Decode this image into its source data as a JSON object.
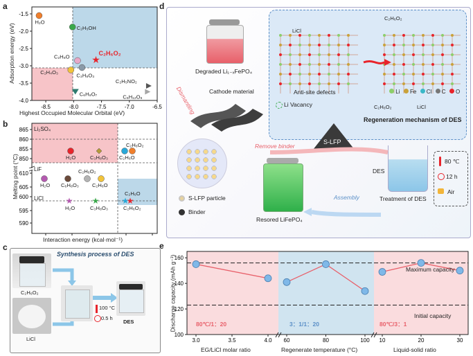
{
  "panel_a": {
    "letter": "a",
    "xlabel": "Highest Occupied Molecular Orbital (eV)",
    "ylabel": "Adsorption energy (eV)",
    "xticks": [
      "-8.5",
      "-8.0",
      "-7.5",
      "-7.0",
      "-6.5"
    ],
    "yticks": [
      "-1.5",
      "-2.0",
      "-2.5",
      "-3.0",
      "-3.5",
      "-4.0"
    ],
    "points": [
      {
        "label": "H₂O",
        "color": "#f07f2c"
      },
      {
        "label": "C₂H₅OH",
        "color": "#3aa84a"
      },
      {
        "label": "C₂H₆O₂",
        "color": "#e8242b"
      },
      {
        "label": "C₂H₆O",
        "color": "#e8a8c8"
      },
      {
        "label": "C₃H₈O₃",
        "color": "#8a9aa8"
      },
      {
        "label": "C₂H₄O₃",
        "color": "#f2c33a"
      },
      {
        "label": "C₆H₈O₇",
        "color": "#2e7a6e"
      },
      {
        "label": "C₂H₅NO₂",
        "color": "#555555"
      },
      {
        "label": "C₆H₁₂O₆",
        "color": "#a6a6a6"
      }
    ]
  },
  "panel_b": {
    "letter": "b",
    "xlabel": "Interaction energy (kcal·mol⁻¹)",
    "ylabel": "Melting point (°C)",
    "xticks": [
      "-15",
      "-16",
      "-17",
      "-18",
      "-19"
    ],
    "yticks": [
      "865",
      "860",
      "855",
      "850",
      "610",
      "605",
      "600",
      "595",
      "590"
    ],
    "salts": [
      "Li₂SO₄",
      "LiF",
      "LiCl"
    ],
    "labels": [
      "H₂O",
      "C₃H₈O₃",
      "C₂H₆O₂",
      "C₂H₆O",
      "C₂H₆O₂",
      "H₂O",
      "C₆H₈O₃",
      "C₂H₆O",
      "H₂O",
      "C₃H₈O₃",
      "C₂H₆O₂",
      "C₂H₆O"
    ]
  },
  "panel_c": {
    "letter": "c",
    "title": "Synthesis process of DES",
    "reagent1": "C₂H₆O₂",
    "reagent2": "LiCl",
    "temp": "100 °C",
    "time": "0.5 h",
    "product": "DES"
  },
  "panel_d": {
    "letter": "d",
    "degraded": "Degraded Li₁₋ₓFePO₄",
    "dismantling": "Dismantling",
    "cathode": "Cathode material",
    "remove_binder": "Remove binder",
    "slfp": "S-LFP",
    "legend_particle": "S-LFP particle",
    "legend_binder": "Binder",
    "restored": "Resored LiFePO₄",
    "assembly": "Assembly",
    "des": "DES",
    "treatment": "Treatment of DES",
    "cond_temp": "80 ℃",
    "cond_time": "12 h",
    "cond_air": "Air",
    "licl_top": "LiCl",
    "eg_top": "C₂H₆O₂",
    "eg_bot": "C₂H₆O₂",
    "licl_bot": "LiCl",
    "anti_site": "Anti-site defects",
    "li_vacancy": "Li Vacancy",
    "mechanism": "Regeneration mechanism of DES",
    "atoms": [
      "Li",
      "Fe",
      "Cl",
      "C",
      "O"
    ]
  },
  "panel_e": {
    "letter": "e",
    "ylabel": "Discharge capacity (mAh g⁻¹)",
    "yticks": [
      "160",
      "140",
      "120",
      "100"
    ],
    "max_label": "Maximum capacity",
    "init_label": "Initial capacity",
    "seg1": {
      "xlabel": "EG/LiCl molar ratio",
      "xticks": [
        "3.0",
        "3.5",
        "4.0"
      ],
      "cond": "80℃/1：20"
    },
    "seg2": {
      "xlabel": "Regenerate temperature (°C)",
      "xticks": [
        "60",
        "80",
        "100"
      ],
      "cond": "3：1/1：20"
    },
    "seg3": {
      "xlabel": "Liquid-solid ratio",
      "xticks": [
        "10",
        "20",
        "30"
      ],
      "cond": "80℃/3：1"
    }
  },
  "chart_data": [
    {
      "type": "scatter",
      "xlabel": "Highest Occupied Molecular Orbital (eV)",
      "ylabel": "Adsorption energy (eV)",
      "xlim": [
        -8.75,
        -6.5
      ],
      "ylim": [
        -4.0,
        -1.3
      ],
      "series": [
        {
          "name": "H₂O",
          "x": [
            -8.62
          ],
          "y": [
            -1.55
          ]
        },
        {
          "name": "C₂H₅OH",
          "x": [
            -8.02
          ],
          "y": [
            -1.88
          ]
        },
        {
          "name": "C₂H₆O₂",
          "x": [
            -7.6
          ],
          "y": [
            -2.82
          ]
        },
        {
          "name": "C₂H₆O",
          "x": [
            -7.93
          ],
          "y": [
            -2.85
          ]
        },
        {
          "name": "C₃H₈O₃",
          "x": [
            -7.85
          ],
          "y": [
            -3.05
          ]
        },
        {
          "name": "C₂H₄O₃",
          "x": [
            -8.05
          ],
          "y": [
            -3.12
          ]
        },
        {
          "name": "C₆H₈O₇",
          "x": [
            -7.97
          ],
          "y": [
            -3.75
          ]
        },
        {
          "name": "C₂H₅NO₂",
          "x": [
            -6.65
          ],
          "y": [
            -3.58
          ]
        },
        {
          "name": "C₆H₁₂O₆",
          "x": [
            -6.67
          ],
          "y": [
            -3.75
          ]
        }
      ]
    },
    {
      "type": "line",
      "ylabel": "Discharge capacity (mAh g⁻¹)",
      "ylim": [
        100,
        165
      ],
      "series": [
        {
          "name": "EG/LiCl molar ratio",
          "x": [
            3.0,
            4.0
          ],
          "y": [
            155,
            144
          ]
        },
        {
          "name": "Regenerate temperature (°C)",
          "x": [
            60,
            80,
            100
          ],
          "y": [
            141,
            155,
            134
          ]
        },
        {
          "name": "Liquid-solid ratio",
          "x": [
            10,
            20,
            30
          ],
          "y": [
            149,
            156,
            150
          ]
        }
      ]
    }
  ]
}
